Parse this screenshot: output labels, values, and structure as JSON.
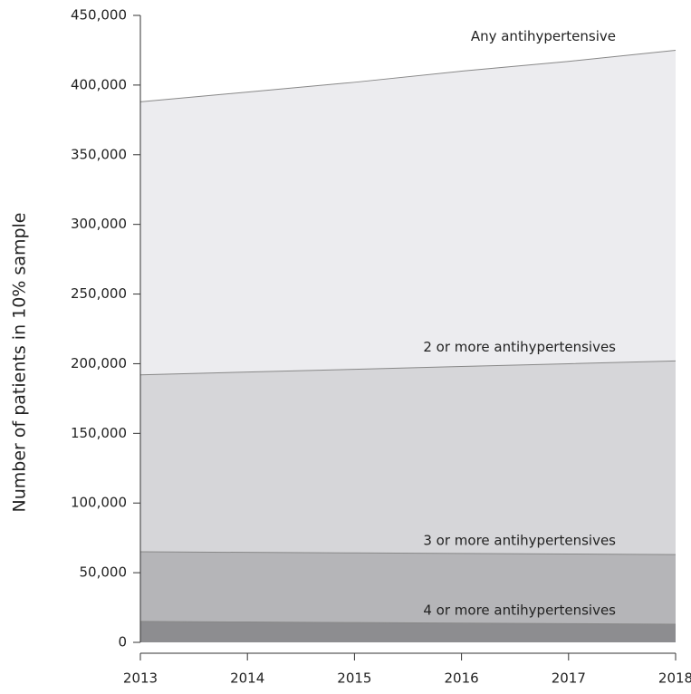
{
  "chart_data": {
    "type": "area",
    "y_label": "Number of patients in 10% sample",
    "x": [
      2013,
      2014,
      2015,
      2016,
      2017,
      2018
    ],
    "xlim": [
      2013,
      2018
    ],
    "xticks": [
      2013,
      2014,
      2015,
      2016,
      2017,
      2018
    ],
    "ylim": [
      0,
      450000
    ],
    "yticks": [
      0,
      {
        "value": 50000,
        "label": "50,000"
      },
      {
        "value": 100000,
        "label": "100,000"
      },
      {
        "value": 150000,
        "label": "150,000"
      },
      {
        "value": 200000,
        "label": "200,000"
      },
      {
        "value": 250000,
        "label": "250,000"
      },
      {
        "value": 300000,
        "label": "300,000"
      },
      {
        "value": 350000,
        "label": "350,000"
      },
      {
        "value": 400000,
        "label": "400,000"
      },
      {
        "value": 450000,
        "label": "450,000"
      }
    ],
    "series": [
      {
        "name": "Any antihypertensive",
        "color": "#ececef",
        "values": [
          388000,
          395000,
          402000,
          410000,
          417000,
          425000
        ]
      },
      {
        "name": "2 or more antihypertensives",
        "color": "#d6d6d9",
        "values": [
          192000,
          194000,
          196000,
          198000,
          200000,
          202000
        ]
      },
      {
        "name": "3 or more antihypertensives",
        "color": "#b5b5b8",
        "values": [
          65000,
          64600,
          64200,
          63800,
          63400,
          63000
        ]
      },
      {
        "name": "4 or more antihypertensives",
        "color": "#8d8d90",
        "values": [
          15000,
          14600,
          14200,
          13800,
          13400,
          13000
        ]
      }
    ]
  }
}
